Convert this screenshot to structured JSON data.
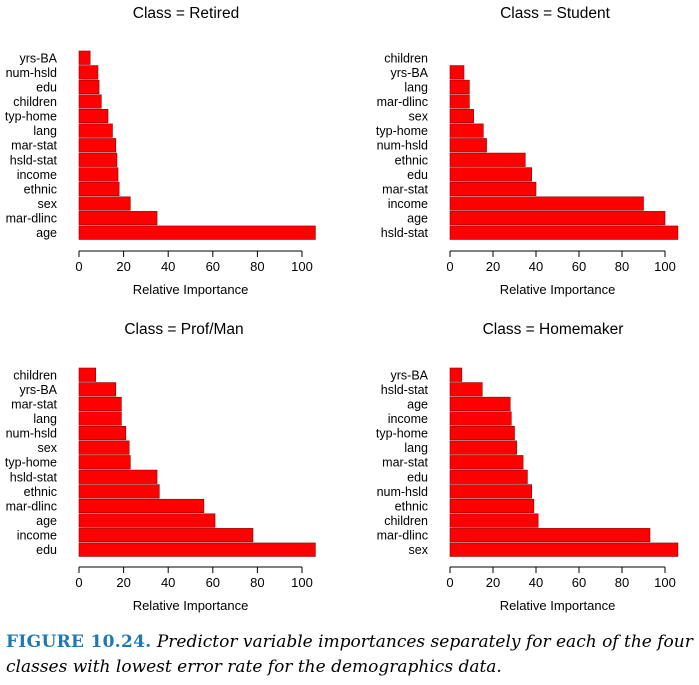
{
  "chart_data": [
    {
      "type": "bar",
      "orientation": "horizontal",
      "title": "Class =  Retired",
      "xlabel": "Relative Importance",
      "ylabel": "",
      "xlim": [
        0,
        105
      ],
      "xticks": [
        0,
        20,
        40,
        60,
        80,
        100
      ],
      "categories": [
        "yrs-BA",
        "num-hsld",
        "edu",
        "children",
        "typ-home",
        "lang",
        "mar-stat",
        "hsld-stat",
        "income",
        "ethnic",
        "sex",
        "mar-dlinc",
        "age"
      ],
      "values": [
        5,
        8.5,
        9,
        10,
        13,
        15,
        16.5,
        17,
        17.5,
        18,
        23,
        35,
        106
      ]
    },
    {
      "type": "bar",
      "orientation": "horizontal",
      "title": "Class =  Student",
      "xlabel": "Relative Importance",
      "ylabel": "",
      "xlim": [
        0,
        105
      ],
      "xticks": [
        0,
        20,
        40,
        60,
        80,
        100
      ],
      "categories": [
        "children",
        "yrs-BA",
        "lang",
        "mar-dlinc",
        "sex",
        "typ-home",
        "num-hsld",
        "ethnic",
        "edu",
        "mar-stat",
        "income",
        "age",
        "hsld-stat"
      ],
      "values": [
        0,
        6.5,
        9,
        9,
        11,
        15.5,
        17,
        35,
        38,
        40,
        90,
        100,
        106
      ]
    },
    {
      "type": "bar",
      "orientation": "horizontal",
      "title": "Class =  Prof/Man",
      "xlabel": "Relative Importance",
      "ylabel": "",
      "xlim": [
        0,
        105
      ],
      "xticks": [
        0,
        20,
        40,
        60,
        80,
        100
      ],
      "categories": [
        "children",
        "yrs-BA",
        "mar-stat",
        "lang",
        "num-hsld",
        "sex",
        "typ-home",
        "hsld-stat",
        "ethnic",
        "mar-dlinc",
        "age",
        "income",
        "edu"
      ],
      "values": [
        7.5,
        16.5,
        19,
        19,
        21,
        22.5,
        23,
        35,
        36,
        56,
        61,
        78,
        106
      ]
    },
    {
      "type": "bar",
      "orientation": "horizontal",
      "title": "Class =  Homemaker",
      "xlabel": "Relative Importance",
      "ylabel": "",
      "xlim": [
        0,
        105
      ],
      "xticks": [
        0,
        20,
        40,
        60,
        80,
        100
      ],
      "categories": [
        "yrs-BA",
        "hsld-stat",
        "age",
        "income",
        "typ-home",
        "lang",
        "mar-stat",
        "edu",
        "num-hsld",
        "ethnic",
        "children",
        "mar-dlinc",
        "sex"
      ],
      "values": [
        5.5,
        15,
        28,
        28.5,
        30,
        31,
        34,
        36,
        38,
        39,
        41,
        93,
        106
      ]
    }
  ],
  "caption": {
    "label": "FIGURE 10.24.",
    "text": "Predictor variable importances separately for each of the four classes with lowest error rate for the demographics data."
  },
  "colors": {
    "bar_fill": "#ff0000",
    "bar_stroke": "#8b0000",
    "caption_label": "#1f78b4"
  }
}
